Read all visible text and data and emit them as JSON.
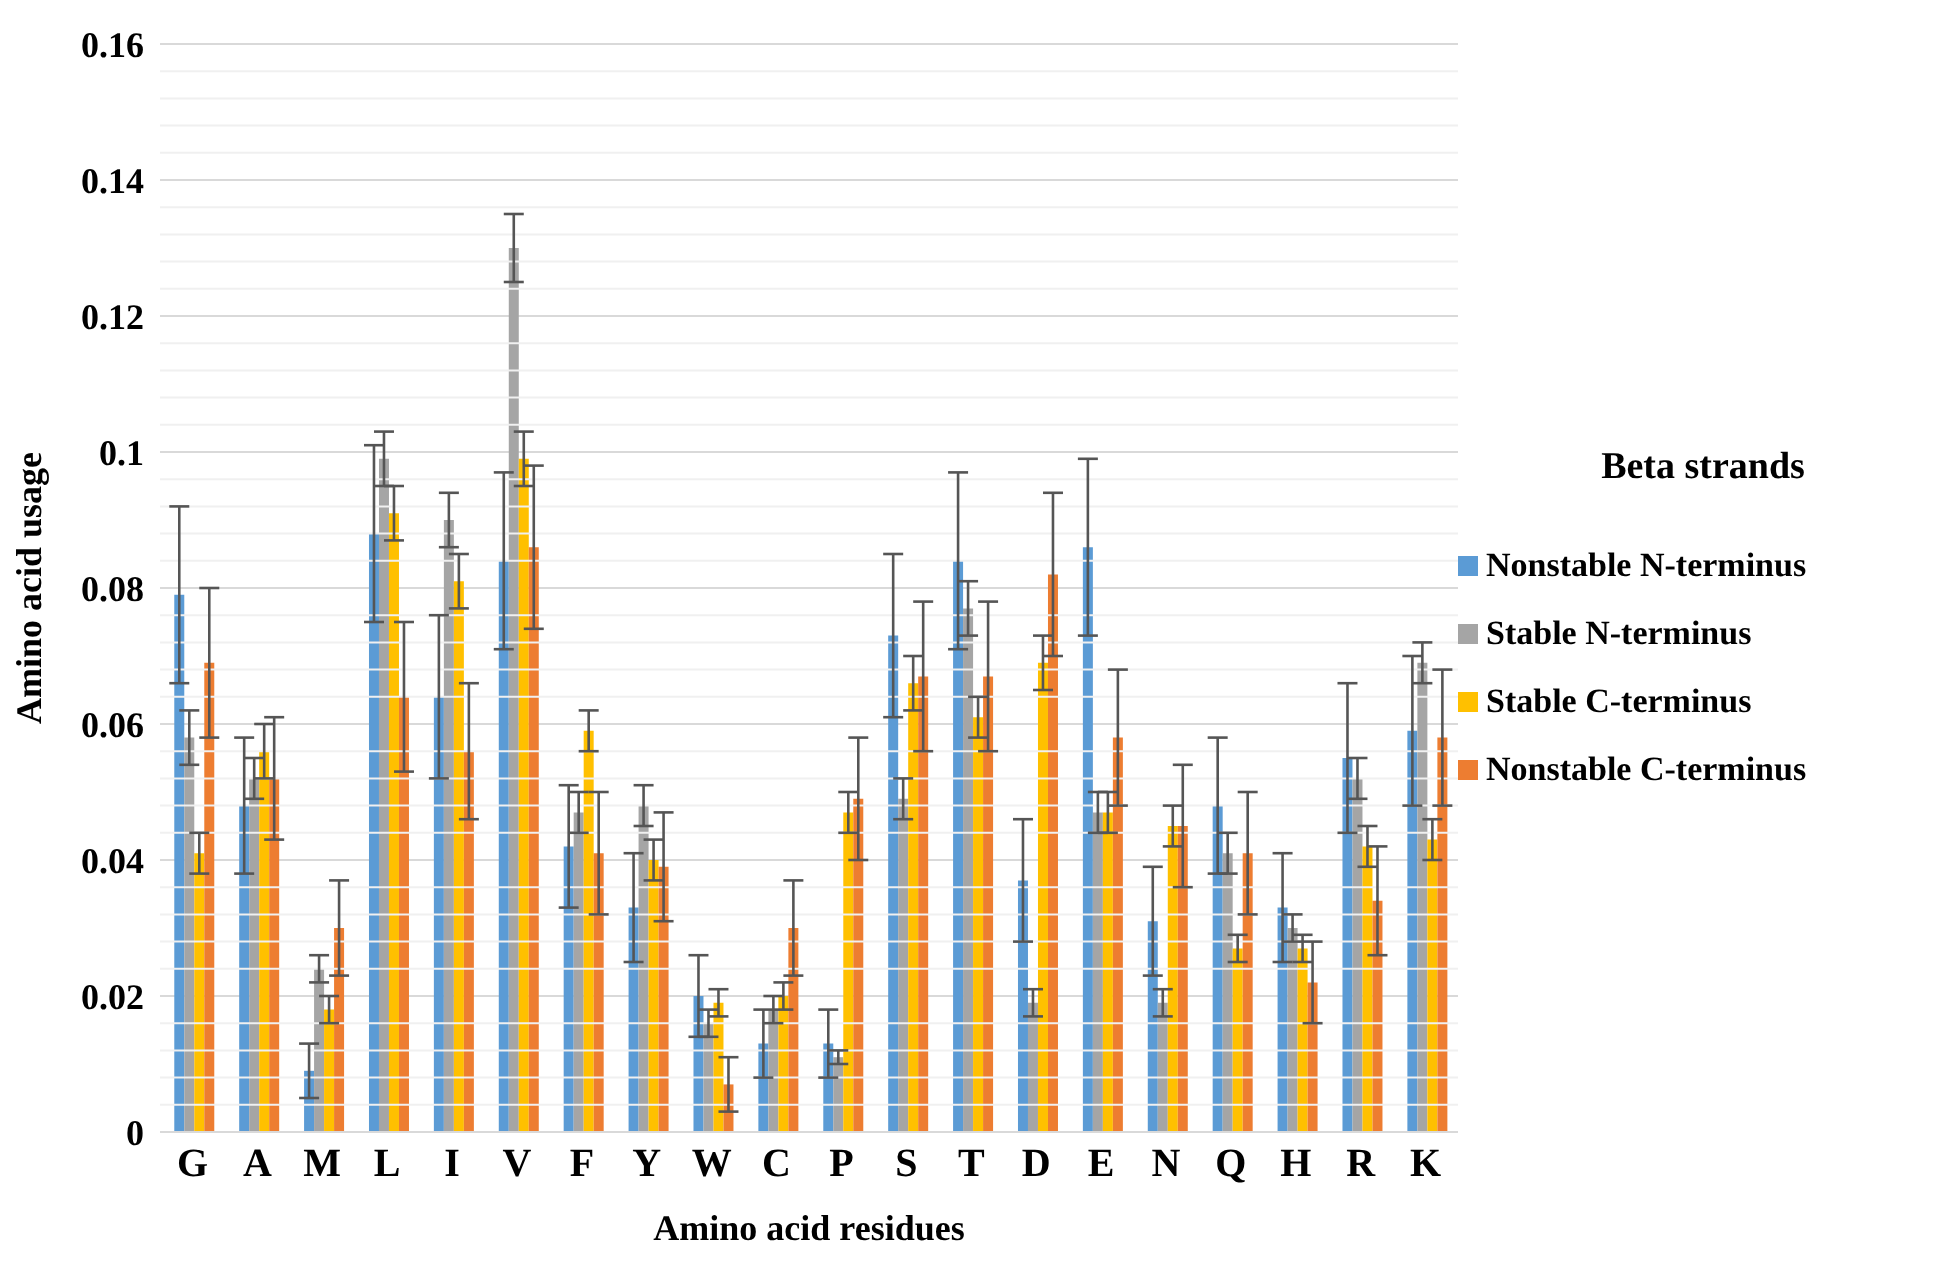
{
  "chart_data": {
    "type": "bar",
    "xlabel": "Amino acid residues",
    "ylabel": "Amino acid usage",
    "legend_title": "Beta strands",
    "legend": "right",
    "grid": "y",
    "categories": [
      "G",
      "A",
      "M",
      "L",
      "I",
      "V",
      "F",
      "Y",
      "W",
      "C",
      "P",
      "S",
      "T",
      "D",
      "E",
      "N",
      "Q",
      "H",
      "R",
      "K"
    ],
    "ylim": [
      0,
      0.16
    ],
    "yticks": [
      0,
      {
        "value": 0.004,
        "label": null
      },
      {
        "value": 0.008,
        "label": null
      },
      {
        "value": 0.012,
        "label": null
      },
      {
        "value": 0.016,
        "label": null
      },
      0.02,
      {
        "value": 0.024,
        "label": null
      },
      {
        "value": 0.028,
        "label": null
      },
      {
        "value": 0.032,
        "label": null
      },
      {
        "value": 0.036,
        "label": null
      },
      0.04,
      {
        "value": 0.044,
        "label": null
      },
      {
        "value": 0.048,
        "label": null
      },
      {
        "value": 0.052,
        "label": null
      },
      {
        "value": 0.056,
        "label": null
      },
      0.06,
      {
        "value": 0.064,
        "label": null
      },
      {
        "value": 0.068,
        "label": null
      },
      {
        "value": 0.072,
        "label": null
      },
      {
        "value": 0.076,
        "label": null
      },
      0.08,
      {
        "value": 0.084,
        "label": null
      },
      {
        "value": 0.088,
        "label": null
      },
      {
        "value": 0.092,
        "label": null
      },
      {
        "value": 0.096,
        "label": null
      },
      0.1,
      {
        "value": 0.104,
        "label": null
      },
      {
        "value": 0.108,
        "label": null
      },
      {
        "value": 0.112,
        "label": null
      },
      {
        "value": 0.116,
        "label": null
      },
      0.12,
      {
        "value": 0.124,
        "label": null
      },
      {
        "value": 0.128,
        "label": null
      },
      {
        "value": 0.132,
        "label": null
      },
      {
        "value": 0.136,
        "label": null
      },
      0.14,
      {
        "value": 0.144,
        "label": null
      },
      {
        "value": 0.148,
        "label": null
      },
      {
        "value": 0.152,
        "label": null
      },
      {
        "value": 0.156,
        "label": null
      },
      0.16
    ],
    "series": [
      {
        "name": "Nonstable N-terminus",
        "color": "#5b9bd5",
        "values": [
          0.079,
          0.048,
          0.009,
          0.088,
          0.064,
          0.084,
          0.042,
          0.033,
          0.02,
          0.013,
          0.013,
          0.073,
          0.084,
          0.037,
          0.086,
          0.031,
          0.048,
          0.033,
          0.055,
          0.059
        ],
        "errors": [
          0.013,
          0.01,
          0.004,
          0.013,
          0.012,
          0.013,
          0.009,
          0.008,
          0.006,
          0.005,
          0.005,
          0.012,
          0.013,
          0.009,
          0.013,
          0.008,
          0.01,
          0.008,
          0.011,
          0.011
        ]
      },
      {
        "name": "Stable N-terminus",
        "color": "#a5a5a5",
        "values": [
          0.058,
          0.052,
          0.024,
          0.099,
          0.09,
          0.13,
          0.047,
          0.048,
          0.016,
          0.018,
          0.011,
          0.049,
          0.077,
          0.019,
          0.047,
          0.019,
          0.041,
          0.03,
          0.052,
          0.069
        ],
        "errors": [
          0.004,
          0.003,
          0.002,
          0.004,
          0.004,
          0.005,
          0.003,
          0.003,
          0.002,
          0.002,
          0.001,
          0.003,
          0.004,
          0.002,
          0.003,
          0.002,
          0.003,
          0.002,
          0.003,
          0.003
        ]
      },
      {
        "name": "Stable C-terminus",
        "color": "#ffc000",
        "values": [
          0.041,
          0.056,
          0.018,
          0.091,
          0.081,
          0.099,
          0.059,
          0.04,
          0.019,
          0.02,
          0.047,
          0.066,
          0.061,
          0.069,
          0.047,
          0.045,
          0.027,
          0.027,
          0.042,
          0.043
        ],
        "errors": [
          0.003,
          0.004,
          0.002,
          0.004,
          0.004,
          0.004,
          0.003,
          0.003,
          0.002,
          0.002,
          0.003,
          0.004,
          0.003,
          0.004,
          0.003,
          0.003,
          0.002,
          0.002,
          0.003,
          0.003
        ]
      },
      {
        "name": "Nonstable C-terminus",
        "color": "#ed7d31",
        "values": [
          0.069,
          0.052,
          0.03,
          0.064,
          0.056,
          0.086,
          0.041,
          0.039,
          0.007,
          0.03,
          0.049,
          0.067,
          0.067,
          0.082,
          0.058,
          0.045,
          0.041,
          0.022,
          0.034,
          0.058
        ],
        "errors": [
          0.011,
          0.009,
          0.007,
          0.011,
          0.01,
          0.012,
          0.009,
          0.008,
          0.004,
          0.007,
          0.009,
          0.011,
          0.011,
          0.012,
          0.01,
          0.009,
          0.009,
          0.006,
          0.008,
          0.01
        ]
      }
    ]
  }
}
